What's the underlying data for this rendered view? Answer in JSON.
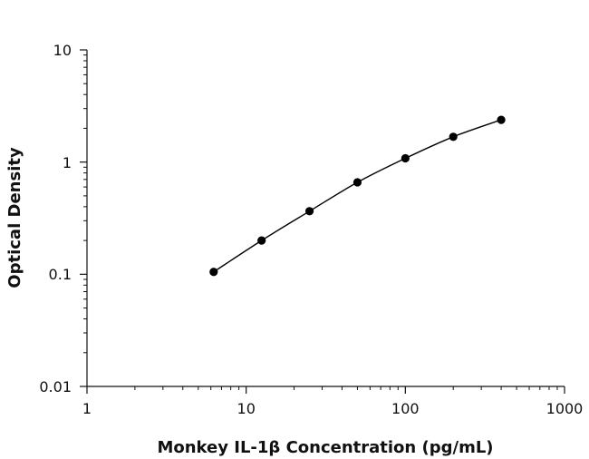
{
  "chart_data": {
    "type": "line",
    "title": "",
    "xlabel": "Monkey IL-1β Concentration (pg/mL)",
    "ylabel": "Optical Density",
    "x_scale": "log",
    "y_scale": "log",
    "xlim": [
      1,
      1000
    ],
    "ylim": [
      0.01,
      10
    ],
    "x_ticks": [
      1,
      10,
      100,
      1000
    ],
    "x_tick_labels": [
      "1",
      "10",
      "100",
      "1000"
    ],
    "y_ticks": [
      0.01,
      0.1,
      1,
      10
    ],
    "y_tick_labels": [
      "0.01",
      "0.1",
      "1",
      "10"
    ],
    "grid": false,
    "legend": "none",
    "series": [
      {
        "x": [
          6.25,
          12.5,
          25,
          50,
          100,
          200,
          400
        ],
        "y": [
          0.105,
          0.2,
          0.365,
          0.66,
          1.08,
          1.68,
          2.38
        ],
        "marker": "circle",
        "color": "#000000"
      }
    ]
  }
}
